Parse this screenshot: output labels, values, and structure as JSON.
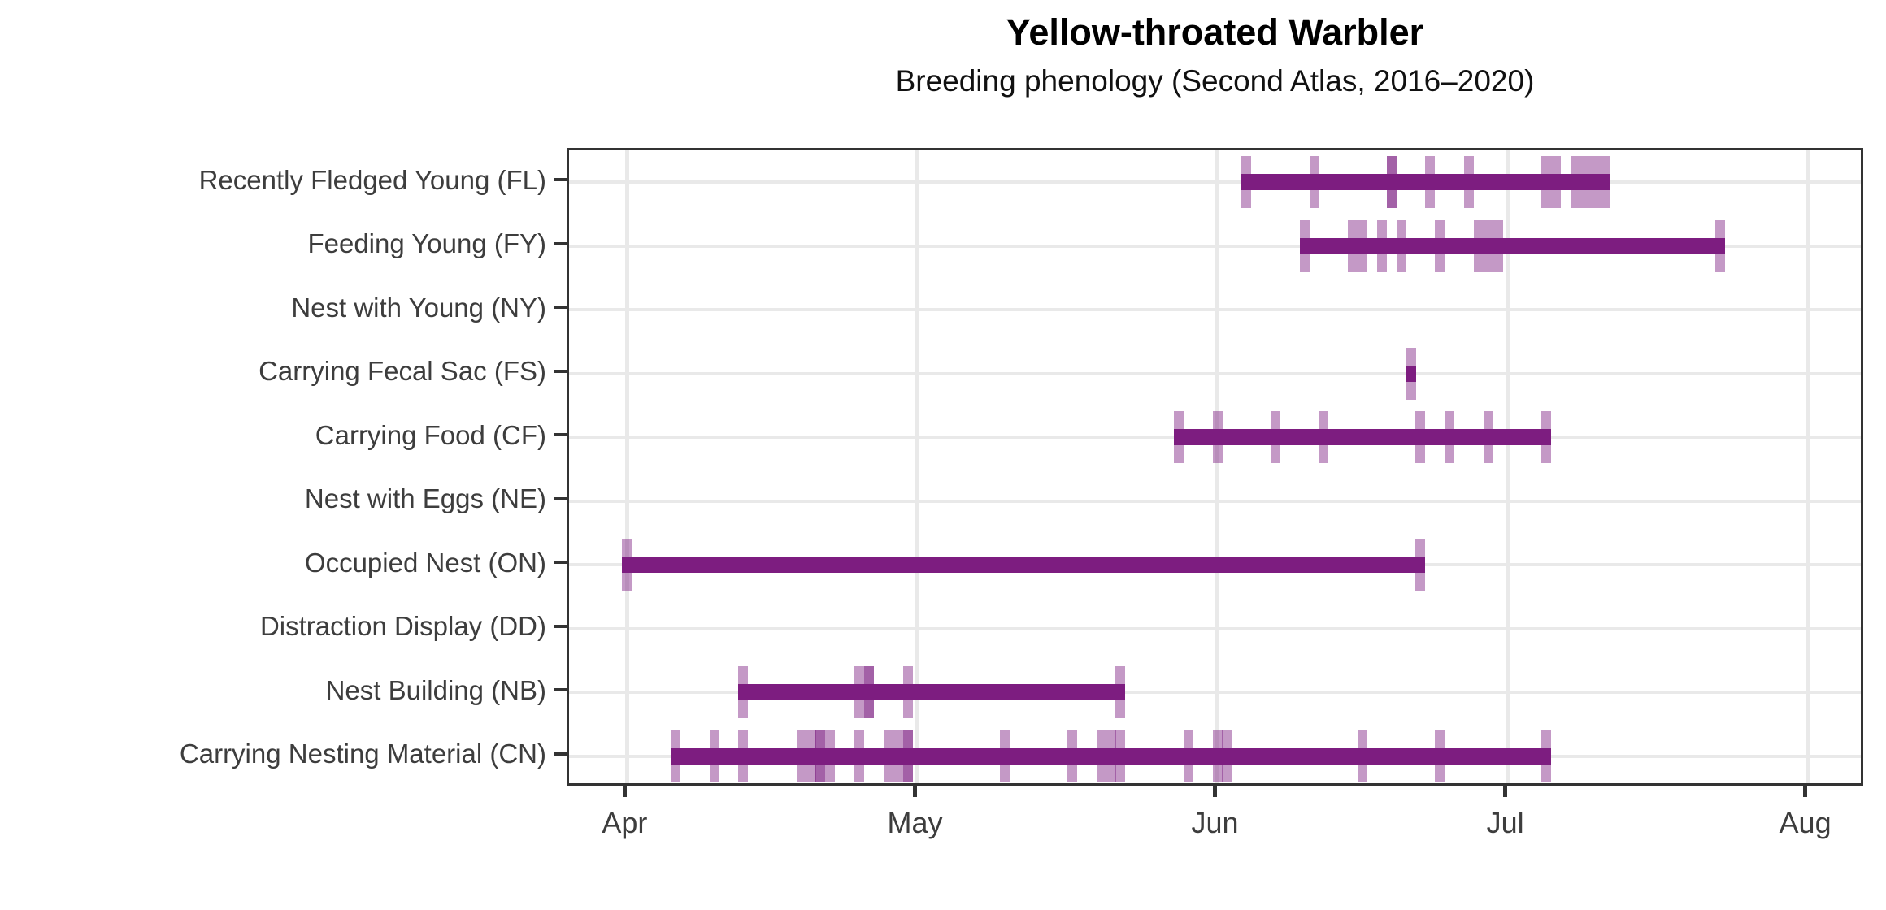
{
  "chart_data": {
    "type": "bar",
    "variant": "horizontal-range-phenology-timeline",
    "title": "Yellow-throated Warbler",
    "subtitle": "Breeding phenology (Second Atlas, 2016–2020)",
    "legend_position": "none",
    "x_axis": {
      "tick_labels": [
        "Apr",
        "May",
        "Jun",
        "Jul",
        "Aug"
      ],
      "month_day_offsets": {
        "Apr": 0,
        "May": 30,
        "Jun": 61,
        "Jul": 91,
        "Aug": 122
      },
      "domain_days_from_apr1": [
        -6,
        128
      ],
      "grid": true
    },
    "y_axis": {
      "grid": true,
      "categories_top_to_bottom": true
    },
    "colors": {
      "range_bar": "#7d1d80",
      "observation_tick": "rgba(125,29,128,0.45)",
      "gridline": "#e9e9e9",
      "panel_border": "#333333",
      "axis_text": "#3d3d3d",
      "title_text": "#000000"
    },
    "rows": [
      {
        "label": "Recently Fledged Young (FL)",
        "code": "FL",
        "range": [
          "Jun 4",
          "Jul 11"
        ],
        "observations": [
          "Jun 4",
          "Jun 11",
          "Jun 19",
          "Jun 19",
          "Jun 23",
          "Jun 27",
          "Jul 5",
          "Jul 6",
          "Jul 8",
          "Jul 9",
          "Jul 10",
          "Jul 11"
        ]
      },
      {
        "label": "Feeding Young (FY)",
        "code": "FY",
        "range": [
          "Jun 10",
          "Jul 23"
        ],
        "observations": [
          "Jun 10",
          "Jun 15",
          "Jun 16",
          "Jun 18",
          "Jun 20",
          "Jun 24",
          "Jun 28",
          "Jun 29",
          "Jun 30",
          "Jul 23"
        ]
      },
      {
        "label": "Nest with Young (NY)",
        "code": "NY",
        "range": null,
        "observations": []
      },
      {
        "label": "Carrying Fecal Sac (FS)",
        "code": "FS",
        "range": [
          "Jun 21",
          "Jun 21"
        ],
        "observations": [
          "Jun 21"
        ]
      },
      {
        "label": "Carrying Food (CF)",
        "code": "CF",
        "range": [
          "May 28",
          "Jul 5"
        ],
        "observations": [
          "May 28",
          "Jun 1",
          "Jun 7",
          "Jun 12",
          "Jun 22",
          "Jun 25",
          "Jun 29",
          "Jul 5"
        ]
      },
      {
        "label": "Nest with Eggs (NE)",
        "code": "NE",
        "range": null,
        "observations": []
      },
      {
        "label": "Occupied Nest (ON)",
        "code": "ON",
        "range": [
          "Apr 1",
          "Jun 22"
        ],
        "observations": [
          "Apr 1",
          "Jun 22"
        ]
      },
      {
        "label": "Distraction Display (DD)",
        "code": "DD",
        "range": null,
        "observations": []
      },
      {
        "label": "Nest Building (NB)",
        "code": "NB",
        "range": [
          "Apr 13",
          "May 22"
        ],
        "observations": [
          "Apr 13",
          "Apr 25",
          "Apr 26",
          "Apr 26",
          "Apr 30",
          "May 22"
        ]
      },
      {
        "label": "Carrying Nesting Material (CN)",
        "code": "CN",
        "range": [
          "Apr 6",
          "Jul 5"
        ],
        "observations": [
          "Apr 6",
          "Apr 10",
          "Apr 13",
          "Apr 19",
          "Apr 20",
          "Apr 21",
          "Apr 21",
          "Apr 22",
          "Apr 25",
          "Apr 28",
          "Apr 29",
          "Apr 30",
          "Apr 30",
          "May 10",
          "May 17",
          "May 20",
          "May 21",
          "May 22",
          "May 29",
          "Jun 1",
          "Jun 2",
          "Jun 16",
          "Jun 24",
          "Jul 5"
        ]
      }
    ]
  }
}
